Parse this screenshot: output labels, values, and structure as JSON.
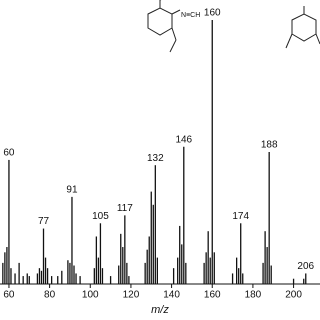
{
  "chart_data": {
    "type": "bar",
    "x_label": "m/z",
    "structure_label": "N≡CH",
    "x": [
      57,
      58,
      59,
      60,
      61,
      63,
      65,
      67,
      69,
      70,
      74,
      75,
      76,
      77,
      78,
      79,
      81,
      84,
      86,
      89,
      90,
      91,
      92,
      93,
      95,
      102,
      103,
      104,
      105,
      106,
      110,
      114,
      115,
      116,
      117,
      118,
      119,
      127,
      128,
      129,
      130,
      131,
      132,
      133,
      141,
      143,
      144,
      145,
      146,
      147,
      156,
      157,
      158,
      159,
      160,
      161,
      170,
      172,
      173,
      174,
      175,
      185,
      186,
      187,
      188,
      189,
      200,
      205,
      206
    ],
    "values": [
      8,
      12,
      14,
      47,
      6,
      4,
      8,
      3,
      4,
      3,
      4,
      6,
      5,
      21,
      10,
      6,
      3,
      3,
      5,
      9,
      8,
      33,
      7,
      4,
      3,
      6,
      18,
      10,
      23,
      6,
      3,
      7,
      19,
      14,
      26,
      8,
      3,
      8,
      13,
      18,
      35,
      30,
      45,
      10,
      6,
      10,
      22,
      15,
      52,
      8,
      8,
      12,
      20,
      10,
      100,
      12,
      4,
      10,
      6,
      23,
      4,
      8,
      20,
      14,
      50,
      7,
      2,
      2,
      4
    ],
    "annotations": [
      60,
      77,
      91,
      105,
      117,
      132,
      146,
      160,
      174,
      188,
      206
    ],
    "color": "#111111",
    "xlim": [
      55.6,
      213
    ],
    "ylim": [
      0,
      100
    ],
    "xticks": [
      60,
      80,
      100,
      120,
      140,
      160,
      180,
      200
    ]
  }
}
